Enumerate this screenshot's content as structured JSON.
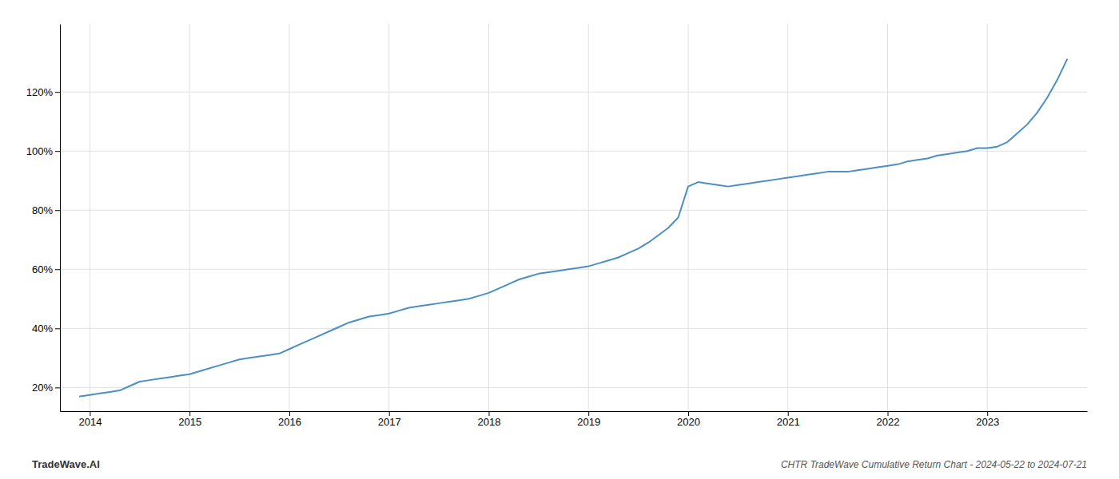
{
  "chart_data": {
    "type": "line",
    "title": "CHTR TradeWave Cumulative Return Chart - 2024-05-22 to 2024-07-21",
    "annotations": [
      "TradeWave.AI"
    ],
    "color": "#4a90c4",
    "x": [
      2013.9,
      2014.0,
      2014.1,
      2014.2,
      2014.3,
      2014.4,
      2014.5,
      2014.6,
      2014.7,
      2014.8,
      2014.9,
      2015.0,
      2015.1,
      2015.2,
      2015.3,
      2015.4,
      2015.5,
      2015.6,
      2015.7,
      2015.8,
      2015.9,
      2016.0,
      2016.1,
      2016.2,
      2016.3,
      2016.4,
      2016.5,
      2016.6,
      2016.7,
      2016.8,
      2016.9,
      2017.0,
      2017.1,
      2017.2,
      2017.3,
      2017.4,
      2017.5,
      2017.6,
      2017.7,
      2017.8,
      2017.9,
      2018.0,
      2018.1,
      2018.2,
      2018.3,
      2018.4,
      2018.5,
      2018.6,
      2018.7,
      2018.8,
      2018.9,
      2019.0,
      2019.1,
      2019.2,
      2019.3,
      2019.4,
      2019.5,
      2019.6,
      2019.7,
      2019.8,
      2019.9,
      2020.0,
      2020.1,
      2020.2,
      2020.3,
      2020.4,
      2020.5,
      2020.6,
      2020.7,
      2020.8,
      2020.9,
      2021.0,
      2021.1,
      2021.2,
      2021.3,
      2021.4,
      2021.5,
      2021.6,
      2021.7,
      2021.8,
      2021.9,
      2022.0,
      2022.1,
      2022.2,
      2022.3,
      2022.4,
      2022.5,
      2022.6,
      2022.7,
      2022.8,
      2022.9,
      2023.0,
      2023.1,
      2023.2,
      2023.3,
      2023.4,
      2023.5,
      2023.6,
      2023.7,
      2023.8
    ],
    "values": [
      17.0,
      17.5,
      18.0,
      18.5,
      19.0,
      20.5,
      22.0,
      22.5,
      23.0,
      23.5,
      24.0,
      24.5,
      25.5,
      26.5,
      27.5,
      28.5,
      29.5,
      30.0,
      30.5,
      31.0,
      31.5,
      33.0,
      34.5,
      36.0,
      37.5,
      39.0,
      40.5,
      42.0,
      43.0,
      44.0,
      44.5,
      45.0,
      46.0,
      47.0,
      47.5,
      48.0,
      48.5,
      49.0,
      49.5,
      50.0,
      51.0,
      52.0,
      53.5,
      55.0,
      56.5,
      57.5,
      58.5,
      59.0,
      59.5,
      60.0,
      60.5,
      61.0,
      62.0,
      63.0,
      64.0,
      65.5,
      67.0,
      69.0,
      71.5,
      74.0,
      77.5,
      88.0,
      89.5,
      89.0,
      88.5,
      88.0,
      88.5,
      89.0,
      89.5,
      90.0,
      90.5,
      91.0,
      91.5,
      92.0,
      92.5,
      93.0,
      93.0,
      93.0,
      93.5,
      94.0,
      94.5,
      95.0,
      95.5,
      96.5,
      97.0,
      97.5,
      98.5,
      99.0,
      99.5,
      100.0,
      101.0,
      101.0,
      101.5,
      103.0,
      106.0,
      109.0,
      113.0,
      118.0,
      124.0,
      131.0
    ],
    "xlim": [
      2013.7,
      2024.0
    ],
    "ylim": [
      12,
      143
    ],
    "xticks": [
      2014,
      2015,
      2016,
      2017,
      2018,
      2019,
      2020,
      2021,
      2022,
      2023
    ],
    "yticks": [
      {
        "value": 20,
        "label": "20%"
      },
      {
        "value": 40,
        "label": "40%"
      },
      {
        "value": 60,
        "label": "60%"
      },
      {
        "value": 80,
        "label": "80%"
      },
      {
        "value": 100,
        "label": "100%"
      },
      {
        "value": 120,
        "label": "120%"
      }
    ],
    "grid": true
  }
}
